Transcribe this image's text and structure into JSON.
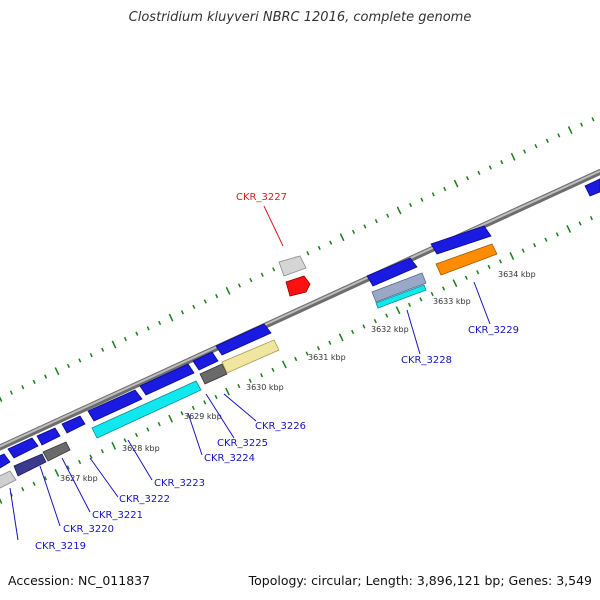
{
  "title": "Clostridium kluyveri NBRC 12016, complete genome",
  "accession": "Accession: NC_011837",
  "summary": "Topology: circular; Length: 3,896,121 bp; Genes: 3,549",
  "colors": {
    "label_blue": "#1414c8",
    "label_red": "#d62020",
    "tick_green": "#1a7f1a",
    "backbone": "#8a8a8a"
  },
  "ticks": [
    {
      "label": "3627 kbp"
    },
    {
      "label": "3628 kbp"
    },
    {
      "label": "3629 kbp"
    },
    {
      "label": "3630 kbp"
    },
    {
      "label": "3631 kbp"
    },
    {
      "label": "3632 kbp"
    },
    {
      "label": "3633 kbp"
    },
    {
      "label": "3634 kbp"
    }
  ],
  "genes": [
    {
      "label": "CKR_3219"
    },
    {
      "label": "CKR_3220"
    },
    {
      "label": "CKR_3221"
    },
    {
      "label": "CKR_3222"
    },
    {
      "label": "CKR_3223"
    },
    {
      "label": "CKR_3224"
    },
    {
      "label": "CKR_3225"
    },
    {
      "label": "CKR_3226"
    },
    {
      "label": "CKR_3227"
    },
    {
      "label": "CKR_3228"
    },
    {
      "label": "CKR_3229"
    }
  ]
}
